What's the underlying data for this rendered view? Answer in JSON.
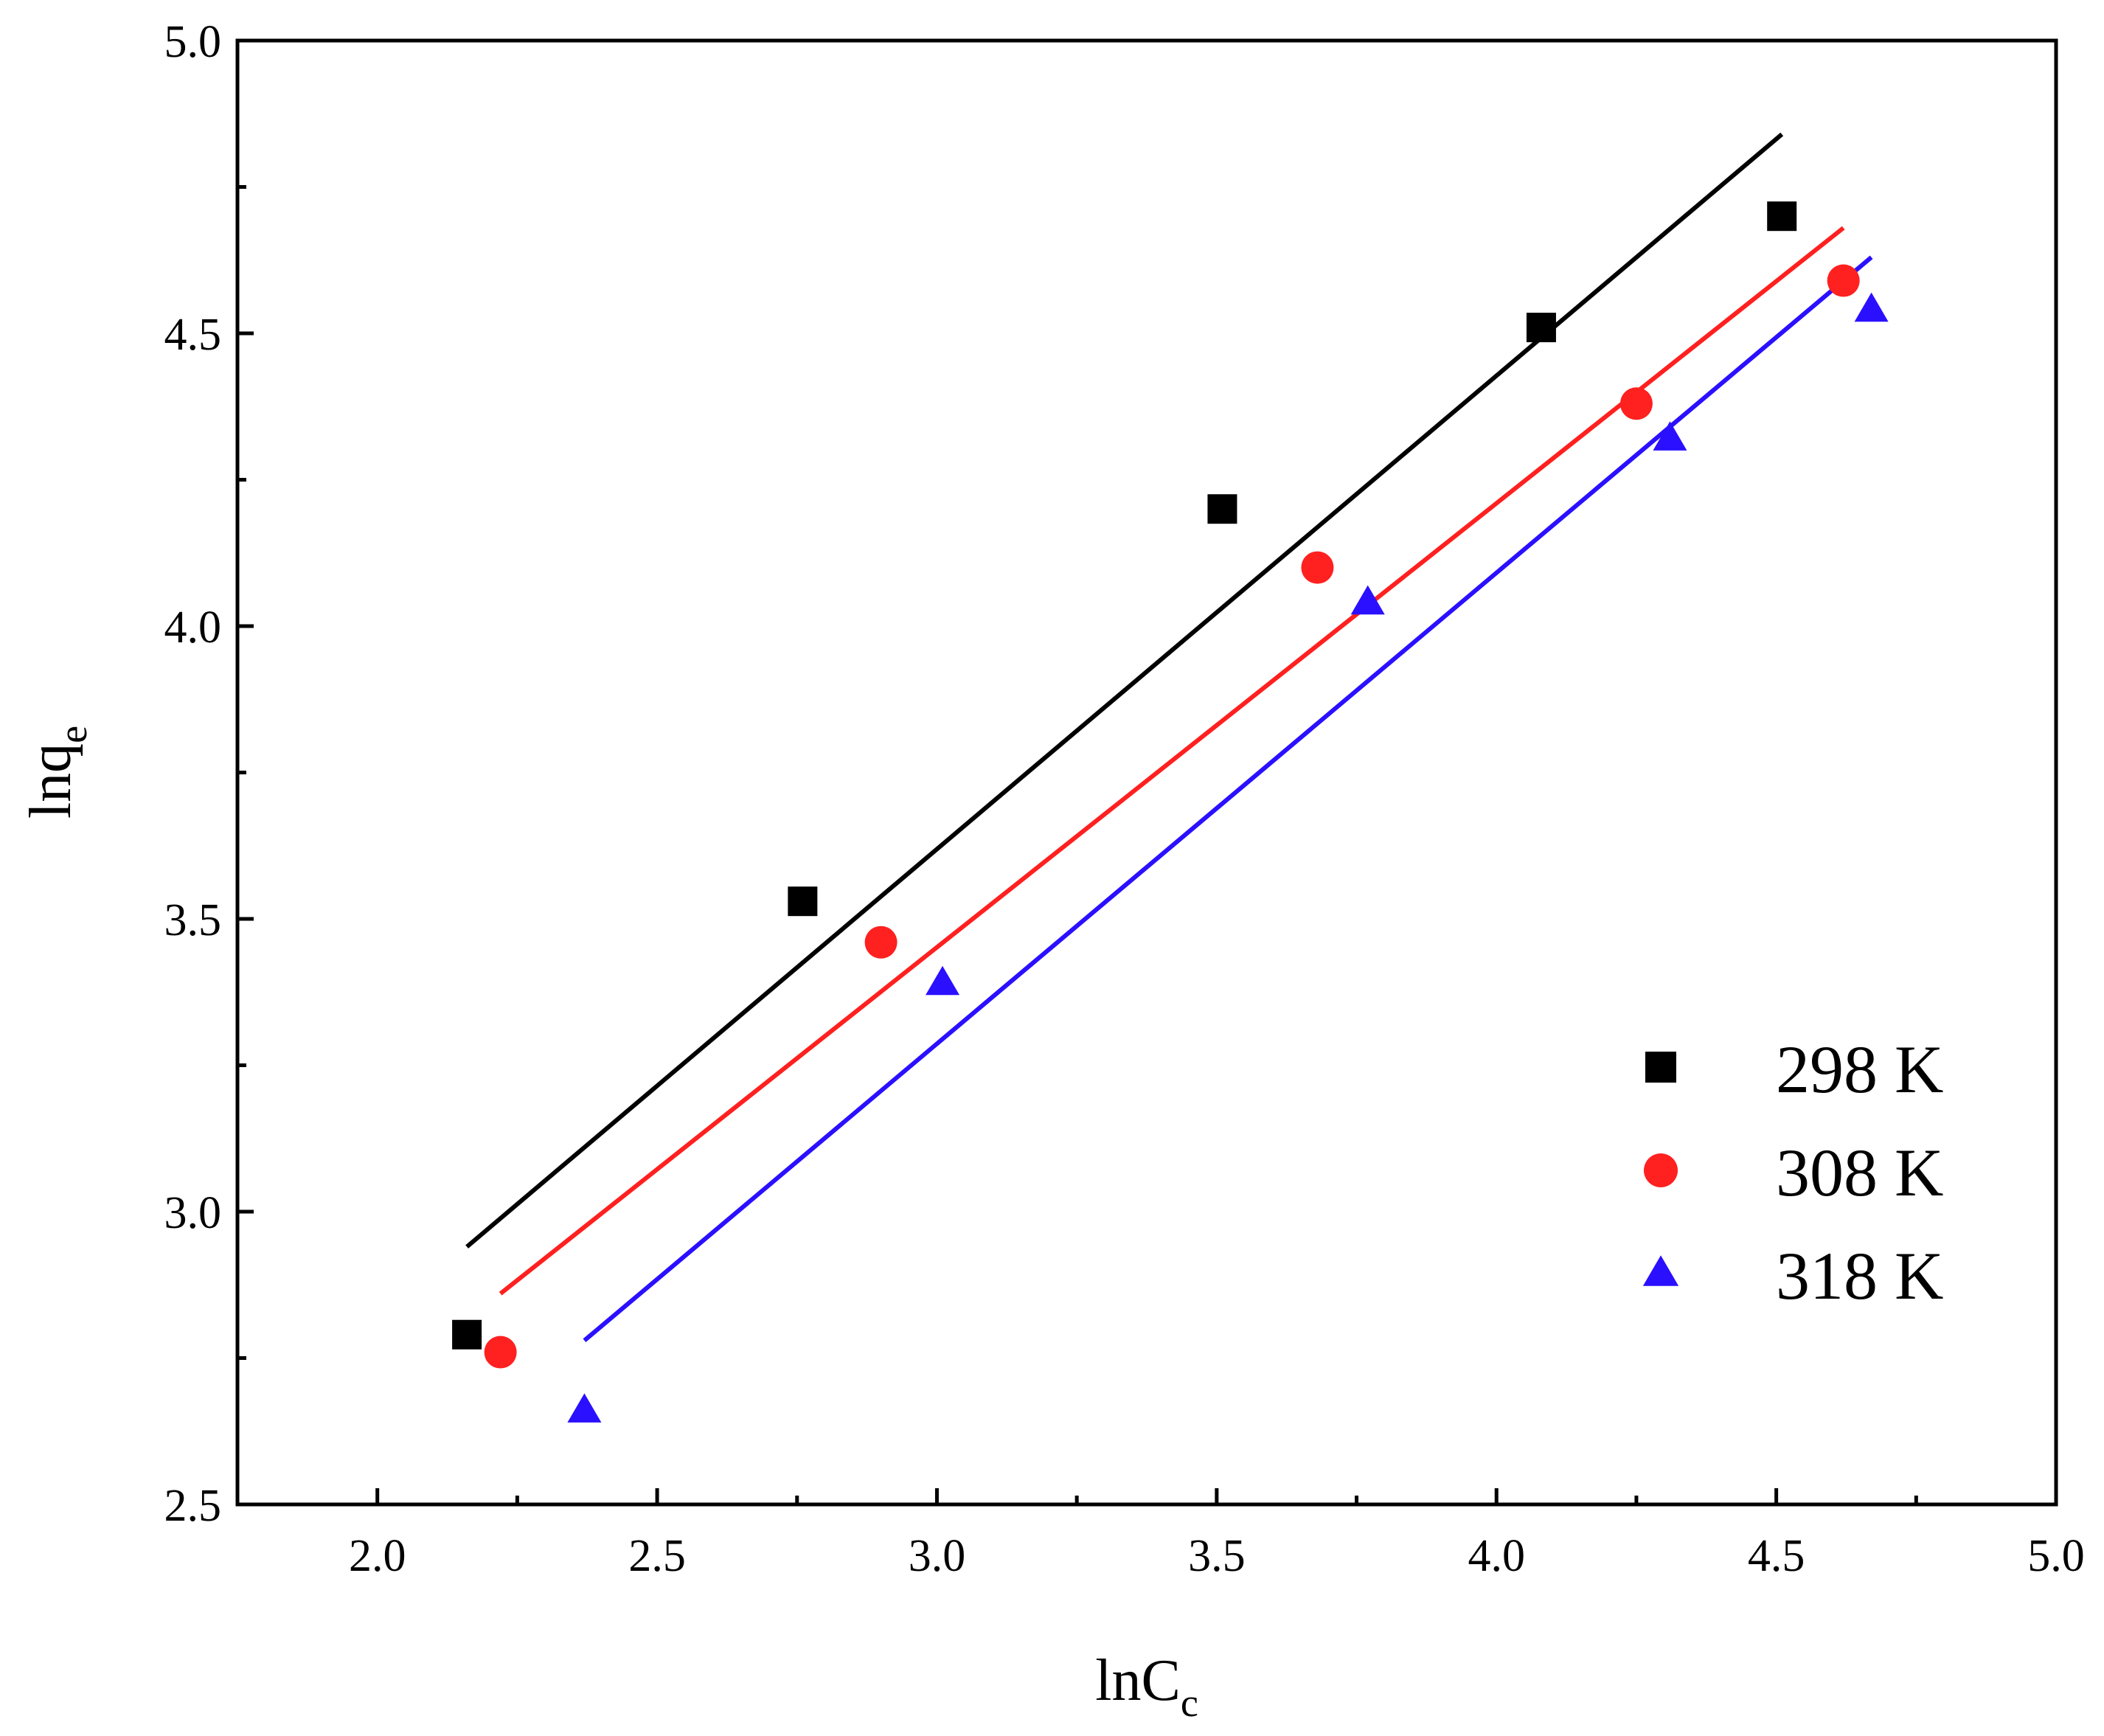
{
  "chart_data": {
    "type": "scatter",
    "title": "",
    "xlabel": {
      "main": "lnC",
      "sub": "c"
    },
    "ylabel": {
      "main": "lnq",
      "sub": "e"
    },
    "xlim": [
      1.75,
      5.0
    ],
    "ylim": [
      2.5,
      5.0
    ],
    "xticks": [
      2.0,
      2.5,
      3.0,
      3.5,
      4.0,
      4.5,
      5.0
    ],
    "xtick_labels": [
      "2.0",
      "2.5",
      "3.0",
      "3.5",
      "4.0",
      "4.5",
      "5.0"
    ],
    "yticks": [
      2.5,
      3.0,
      3.5,
      4.0,
      4.5,
      5.0
    ],
    "ytick_labels": [
      "2.5",
      "3.0",
      "3.5",
      "4.0",
      "4.5",
      "5.0"
    ],
    "grid": false,
    "legend_position": "bottom-right",
    "series": [
      {
        "name": "298 K",
        "marker": "square",
        "color": "#000000",
        "x": [
          2.16,
          2.76,
          3.51,
          4.08,
          4.51
        ],
        "y": [
          2.79,
          3.53,
          4.2,
          4.51,
          4.7
        ],
        "fit_line": {
          "x": [
            2.16,
            4.51
          ],
          "y": [
            2.94,
            4.84
          ]
        }
      },
      {
        "name": "308 K",
        "marker": "circle",
        "color": "#ff2020",
        "x": [
          2.22,
          2.9,
          3.68,
          4.25,
          4.62
        ],
        "y": [
          2.76,
          3.46,
          4.1,
          4.38,
          4.59
        ],
        "fit_line": {
          "x": [
            2.22,
            4.62
          ],
          "y": [
            2.86,
            4.68
          ]
        }
      },
      {
        "name": "318 K",
        "marker": "triangle",
        "color": "#2a10ff",
        "x": [
          2.37,
          3.01,
          3.77,
          4.31,
          4.67
        ],
        "y": [
          2.66,
          3.39,
          4.04,
          4.32,
          4.54
        ],
        "fit_line": {
          "x": [
            2.37,
            4.67
          ],
          "y": [
            2.78,
            4.63
          ]
        }
      }
    ]
  }
}
